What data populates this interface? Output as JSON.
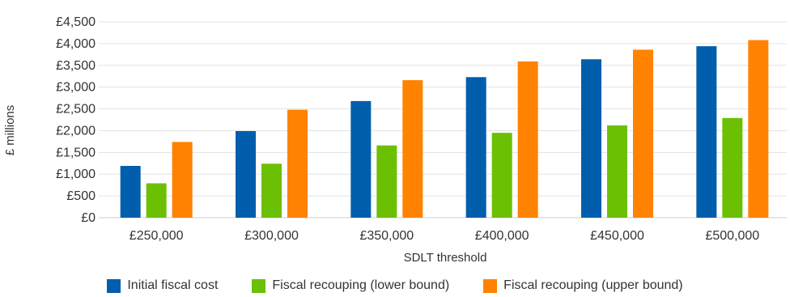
{
  "chart_data": {
    "type": "bar",
    "categories": [
      "£250,000",
      "£300,000",
      "£350,000",
      "£400,000",
      "£450,000",
      "£500,000"
    ],
    "series": [
      {
        "name": "Initial fiscal cost",
        "color": "#005ead",
        "values": [
          1190,
          1990,
          2680,
          3230,
          3640,
          3940
        ]
      },
      {
        "name": "Fiscal recouping (lower bound)",
        "color": "#6cc003",
        "values": [
          790,
          1240,
          1660,
          1950,
          2120,
          2290
        ]
      },
      {
        "name": "Fiscal recouping (upper bound)",
        "color": "#ff8200",
        "values": [
          1740,
          2480,
          3160,
          3590,
          3860,
          4080
        ]
      }
    ],
    "xlabel": "SDLT threshold",
    "ylabel": "£ millions",
    "ylim": [
      0,
      4500
    ],
    "yticks": [
      "£0",
      "£500",
      "£1,000",
      "£1,500",
      "£2,000",
      "£2,500",
      "£3,000",
      "£3,500",
      "£4,000",
      "£4,500"
    ],
    "grid": true,
    "legend_position": "bottom"
  }
}
